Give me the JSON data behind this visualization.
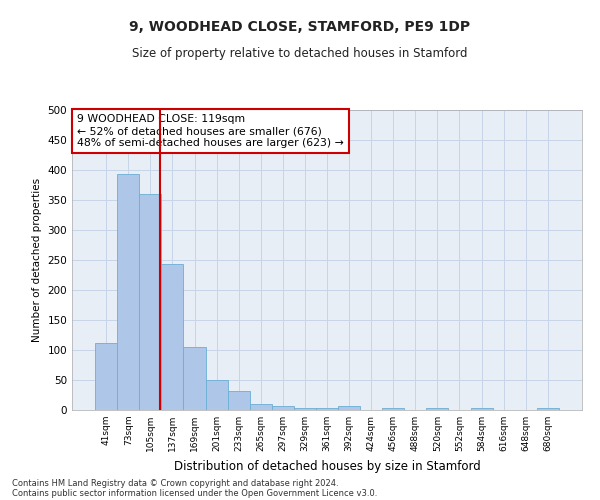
{
  "title": "9, WOODHEAD CLOSE, STAMFORD, PE9 1DP",
  "subtitle": "Size of property relative to detached houses in Stamford",
  "xlabel": "Distribution of detached houses by size in Stamford",
  "ylabel": "Number of detached properties",
  "bar_color": "#aec6e8",
  "bar_edge_color": "#6baed6",
  "background_color": "#ffffff",
  "grid_color": "#c8d4e8",
  "ax_facecolor": "#e8eef6",
  "annotation_line_color": "#cc0000",
  "annotation_box_edgecolor": "#cc0000",
  "categories": [
    "41sqm",
    "73sqm",
    "105sqm",
    "137sqm",
    "169sqm",
    "201sqm",
    "233sqm",
    "265sqm",
    "297sqm",
    "329sqm",
    "361sqm",
    "392sqm",
    "424sqm",
    "456sqm",
    "488sqm",
    "520sqm",
    "552sqm",
    "584sqm",
    "616sqm",
    "648sqm",
    "680sqm"
  ],
  "values": [
    111,
    394,
    360,
    244,
    105,
    50,
    31,
    10,
    6,
    4,
    4,
    6,
    0,
    3,
    0,
    4,
    0,
    3,
    0,
    0,
    3
  ],
  "ylim": [
    0,
    500
  ],
  "yticks": [
    0,
    50,
    100,
    150,
    200,
    250,
    300,
    350,
    400,
    450,
    500
  ],
  "property_label": "9 WOODHEAD CLOSE: 119sqm",
  "annotation_line1": "← 52% of detached houses are smaller (676)",
  "annotation_line2": "48% of semi-detached houses are larger (623) →",
  "vline_x": 2.44,
  "footer_line1": "Contains HM Land Registry data © Crown copyright and database right 2024.",
  "footer_line2": "Contains public sector information licensed under the Open Government Licence v3.0."
}
